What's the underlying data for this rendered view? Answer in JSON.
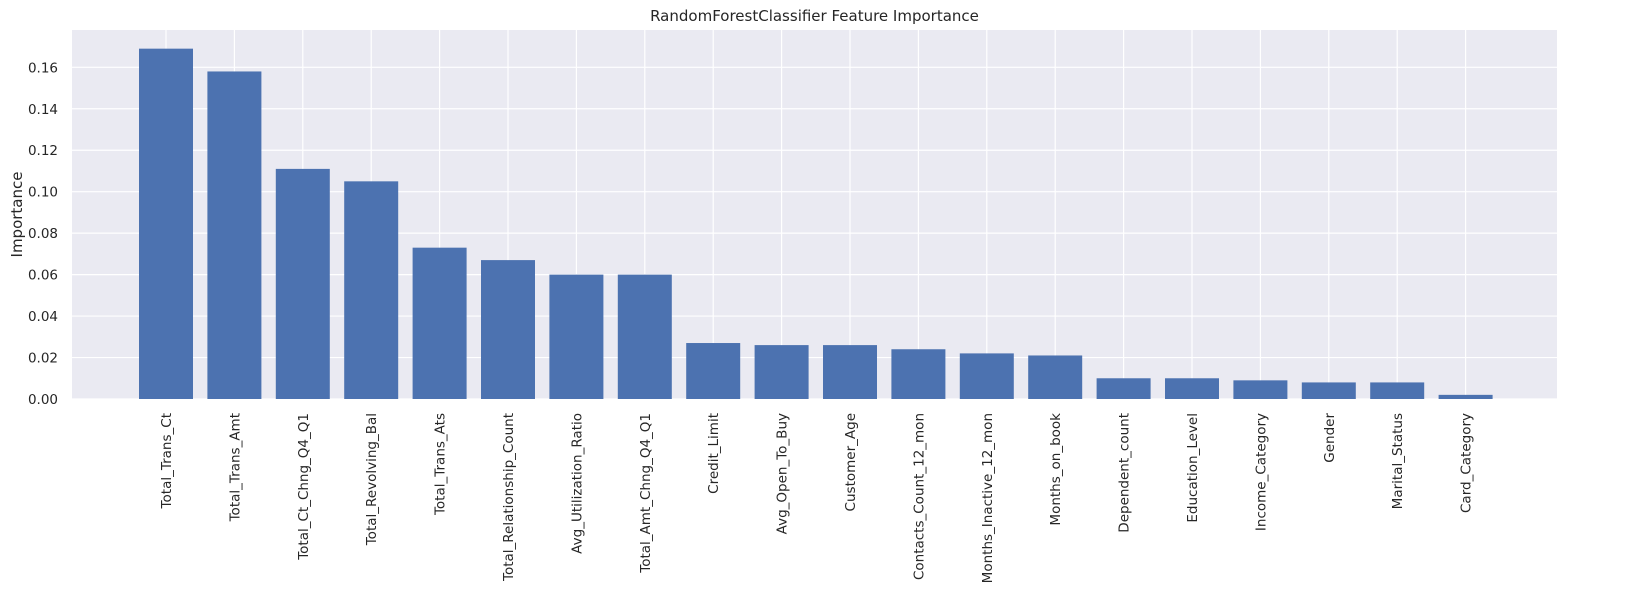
{
  "chart_data": {
    "type": "bar",
    "title": "RandomForestClassifier Feature Importance",
    "xlabel": "",
    "ylabel": "Importance",
    "ylim": [
      0,
      0.178
    ],
    "yticks": [
      "0.00",
      "0.02",
      "0.04",
      "0.06",
      "0.08",
      "0.10",
      "0.12",
      "0.14",
      "0.16"
    ],
    "grid": true,
    "bar_color": "#4c72b0",
    "background_color": "#eaeaf2",
    "categories": [
      "Total_Trans_Ct",
      "Total_Trans_Amt",
      "Total_Ct_Chng_Q4_Q1",
      "Total_Revolving_Bal",
      "Total_Trans_Ats",
      "Total_Relationship_Count",
      "Avg_Utilization_Ratio",
      "Total_Amt_Chng_Q4_Q1",
      "Credit_Limit",
      "Avg_Open_To_Buy",
      "Customer_Age",
      "Contacts_Count_12_mon",
      "Months_Inactive_12_mon",
      "Months_on_book",
      "Dependent_count",
      "Education_Level",
      "Income_Category",
      "Gender",
      "Marital_Status",
      "Card_Category"
    ],
    "values": [
      0.169,
      0.158,
      0.111,
      0.105,
      0.073,
      0.067,
      0.06,
      0.06,
      0.027,
      0.026,
      0.026,
      0.024,
      0.022,
      0.021,
      0.01,
      0.01,
      0.009,
      0.008,
      0.008,
      0.002
    ]
  }
}
